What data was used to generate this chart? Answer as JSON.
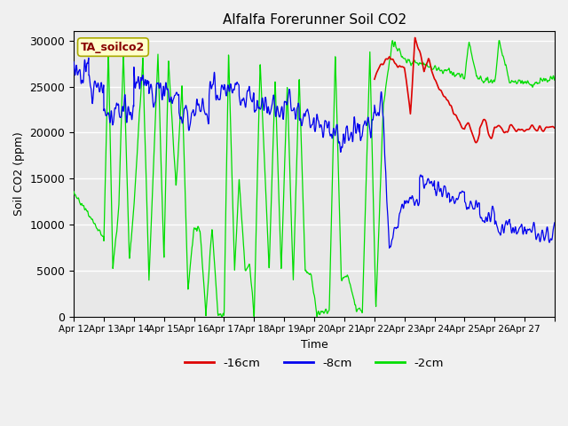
{
  "title": "Alfalfa Forerunner Soil CO2",
  "xlabel": "Time",
  "ylabel": "Soil CO2 (ppm)",
  "ylim": [
    0,
    31000
  ],
  "yticks": [
    0,
    5000,
    10000,
    15000,
    20000,
    25000,
    30000
  ],
  "legend_label": "TA_soilco2",
  "line_labels": [
    "-16cm",
    "-8cm",
    "-2cm"
  ],
  "line_colors": [
    "#dd0000",
    "#0000ee",
    "#00dd00"
  ],
  "x_tick_labels": [
    "Apr 12",
    "Apr 13",
    "Apr 14",
    "Apr 15",
    "Apr 16",
    "Apr 17",
    "Apr 18",
    "Apr 19",
    "Apr 20",
    "Apr 21",
    "Apr 22",
    "Apr 23",
    "Apr 24",
    "Apr 25",
    "Apr 26",
    "Apr 27"
  ],
  "n_days": 16,
  "spd": 144,
  "fig_bg": "#f0f0f0",
  "ax_bg": "#e8e8e8",
  "grid_color": "#ffffff",
  "annotation_fc": "#ffffcc",
  "annotation_ec": "#aaaa00",
  "annotation_color": "#880000"
}
